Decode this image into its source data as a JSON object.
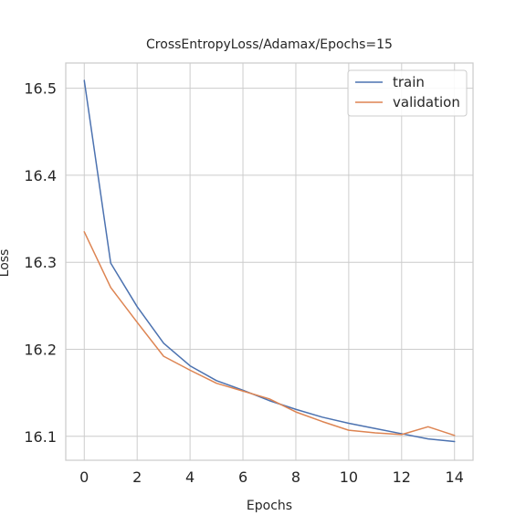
{
  "chart_data": {
    "type": "line",
    "title": "CrossEntropyLoss/Adamax/Epochs=15",
    "xlabel": "Epochs",
    "ylabel": "Loss",
    "x": [
      0,
      1,
      2,
      3,
      4,
      5,
      6,
      7,
      8,
      9,
      10,
      11,
      12,
      13,
      14
    ],
    "series": [
      {
        "name": "train",
        "color": "#4c72b0",
        "values": [
          16.509,
          16.299,
          16.249,
          16.207,
          16.181,
          16.164,
          16.153,
          16.141,
          16.131,
          16.122,
          16.115,
          16.109,
          16.103,
          16.097,
          16.094
        ]
      },
      {
        "name": "validation",
        "color": "#dd8452",
        "values": [
          16.335,
          16.271,
          16.231,
          16.192,
          16.176,
          16.161,
          16.152,
          16.143,
          16.128,
          16.117,
          16.107,
          16.104,
          16.102,
          16.111,
          16.101
        ]
      }
    ],
    "xlim": [
      -0.7,
      14.7
    ],
    "ylim": [
      16.0725,
      16.529
    ],
    "xticks": [
      0,
      2,
      4,
      6,
      8,
      10,
      12,
      14
    ],
    "yticks": [
      16.1,
      16.2,
      16.3,
      16.4,
      16.5
    ],
    "xtick_labels": [
      "0",
      "2",
      "4",
      "6",
      "8",
      "10",
      "12",
      "14"
    ],
    "ytick_labels": [
      "16.1",
      "16.2",
      "16.3",
      "16.4",
      "16.5"
    ],
    "grid": true,
    "legend_position": "top-right"
  }
}
